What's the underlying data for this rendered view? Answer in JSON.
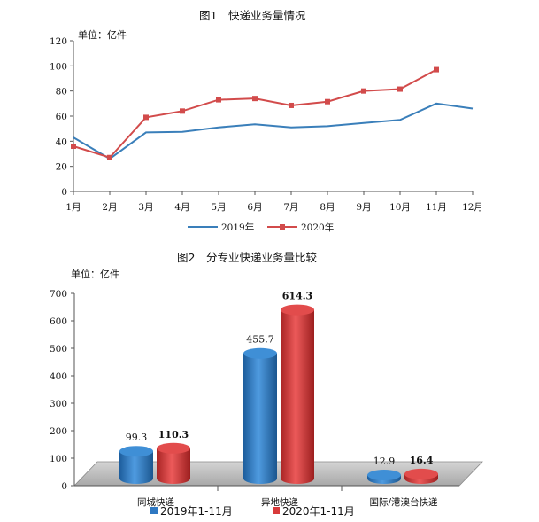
{
  "chart_data": [
    {
      "type": "line",
      "title": "图1　快递业务量情况",
      "unit_label": "单位：亿件",
      "x": [
        "1月",
        "2月",
        "3月",
        "4月",
        "5月",
        "6月",
        "7月",
        "8月",
        "9月",
        "10月",
        "11月",
        "12月"
      ],
      "yticks": [
        "0",
        "20",
        "40",
        "60",
        "80",
        "100",
        "120"
      ],
      "ylim": [
        0,
        120
      ],
      "grid": false,
      "legend_position": "bottom",
      "series": [
        {
          "name": "2019年",
          "color": "#3a7fba",
          "marker": "none",
          "values": [
            43,
            26,
            47,
            47.5,
            51,
            53.5,
            51,
            52,
            54.5,
            57,
            70,
            66
          ]
        },
        {
          "name": "2020年",
          "color": "#d24b4b",
          "marker": "square",
          "values": [
            36,
            27,
            59,
            64,
            73,
            74,
            68.5,
            71.5,
            80,
            81.5,
            97,
            null
          ]
        }
      ]
    },
    {
      "type": "bar",
      "style": "3d-cylinder",
      "title": "图2　分专业快递业务量比较",
      "unit_label": "单位：亿件",
      "categories": [
        "同城快递",
        "异地快递",
        "国际/港澳台快递"
      ],
      "yticks": [
        "0",
        "100",
        "200",
        "300",
        "400",
        "500",
        "600",
        "700"
      ],
      "ylim": [
        0,
        700
      ],
      "legend_position": "bottom",
      "series": [
        {
          "name": "2019年1-11月",
          "color": "#2e78c2",
          "values": [
            99.3,
            455.7,
            12.9
          ],
          "labels": [
            "99.3",
            "455.7",
            "12.9"
          ]
        },
        {
          "name": "2020年1-11月",
          "color": "#d83a3a",
          "values": [
            110.3,
            614.3,
            16.4
          ],
          "labels": [
            "110.3",
            "614.3",
            "16.4"
          ]
        }
      ]
    }
  ]
}
